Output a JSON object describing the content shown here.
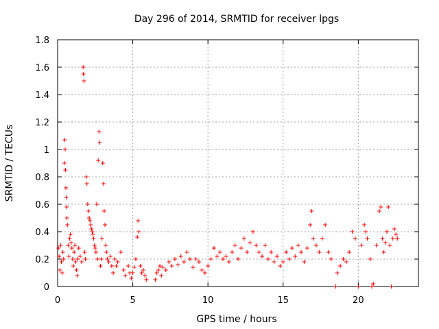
{
  "chart_data": {
    "type": "scatter",
    "title": "Day 296 of 2014, SRMTID for receiver lpgs",
    "xlabel": "GPS time / hours",
    "ylabel": "SRMTID / TECUs",
    "xlim": [
      0,
      24
    ],
    "ylim": [
      0,
      1.8
    ],
    "xticks": [
      0,
      5,
      10,
      15,
      20
    ],
    "yticks": [
      0,
      0.2,
      0.4,
      0.6,
      0.8,
      1,
      1.2,
      1.4,
      1.6,
      1.8
    ],
    "xtick_labels": [
      "0",
      "5",
      "10",
      "15",
      "20"
    ],
    "ytick_labels": [
      "0",
      "0.2",
      "0.4",
      "0.6",
      "0.8",
      "1",
      "1.2",
      "1.4",
      "1.6",
      "1.8"
    ],
    "grid": true,
    "marker": "+",
    "color": "#ff0000",
    "series": [
      {
        "name": "SRMTID",
        "points": [
          [
            0.05,
            0.28
          ],
          [
            0.1,
            0.22
          ],
          [
            0.15,
            0.12
          ],
          [
            0.2,
            0.3
          ],
          [
            0.25,
            0.18
          ],
          [
            0.3,
            0.1
          ],
          [
            0.35,
            0.25
          ],
          [
            0.4,
            0.2
          ],
          [
            0.45,
            0.9
          ],
          [
            0.47,
            1.07
          ],
          [
            0.5,
            1.0
          ],
          [
            0.52,
            0.85
          ],
          [
            0.55,
            0.72
          ],
          [
            0.57,
            0.65
          ],
          [
            0.6,
            0.58
          ],
          [
            0.62,
            0.5
          ],
          [
            0.65,
            0.45
          ],
          [
            0.7,
            0.3
          ],
          [
            0.75,
            0.22
          ],
          [
            0.8,
            0.35
          ],
          [
            0.85,
            0.38
          ],
          [
            0.9,
            0.32
          ],
          [
            0.95,
            0.28
          ],
          [
            1.0,
            0.2
          ],
          [
            1.05,
            0.15
          ],
          [
            1.1,
            0.25
          ],
          [
            1.15,
            0.3
          ],
          [
            1.2,
            0.18
          ],
          [
            1.25,
            0.12
          ],
          [
            1.3,
            0.08
          ],
          [
            1.35,
            0.2
          ],
          [
            1.4,
            0.28
          ],
          [
            1.5,
            0.22
          ],
          [
            1.6,
            0.18
          ],
          [
            1.7,
            1.6
          ],
          [
            1.72,
            1.55
          ],
          [
            1.75,
            1.5
          ],
          [
            1.8,
            0.25
          ],
          [
            1.85,
            0.2
          ],
          [
            1.9,
            0.8
          ],
          [
            1.95,
            0.75
          ],
          [
            2.0,
            0.6
          ],
          [
            2.05,
            0.55
          ],
          [
            2.1,
            0.5
          ],
          [
            2.15,
            0.48
          ],
          [
            2.2,
            0.45
          ],
          [
            2.25,
            0.42
          ],
          [
            2.3,
            0.4
          ],
          [
            2.35,
            0.38
          ],
          [
            2.4,
            0.35
          ],
          [
            2.45,
            0.3
          ],
          [
            2.5,
            0.28
          ],
          [
            2.55,
            0.25
          ],
          [
            2.6,
            0.6
          ],
          [
            2.65,
            0.2
          ],
          [
            2.7,
            0.92
          ],
          [
            2.75,
            1.13
          ],
          [
            2.8,
            1.05
          ],
          [
            2.85,
            0.15
          ],
          [
            2.9,
            0.2
          ],
          [
            2.95,
            0.35
          ],
          [
            3.0,
            0.9
          ],
          [
            3.05,
            0.75
          ],
          [
            3.1,
            0.55
          ],
          [
            3.15,
            0.45
          ],
          [
            3.2,
            0.3
          ],
          [
            3.25,
            0.25
          ],
          [
            3.3,
            0.2
          ],
          [
            3.4,
            0.18
          ],
          [
            3.5,
            0.22
          ],
          [
            3.6,
            0.15
          ],
          [
            3.7,
            0.1
          ],
          [
            3.8,
            0.2
          ],
          [
            3.9,
            0.15
          ],
          [
            4.0,
            0.18
          ],
          [
            4.2,
            0.25
          ],
          [
            4.4,
            0.12
          ],
          [
            4.5,
            0.08
          ],
          [
            4.7,
            0.15
          ],
          [
            4.8,
            0.1
          ],
          [
            4.9,
            0.06
          ],
          [
            5.0,
            0.1
          ],
          [
            5.1,
            0.14
          ],
          [
            5.2,
            0.2
          ],
          [
            5.3,
            0.36
          ],
          [
            5.35,
            0.48
          ],
          [
            5.4,
            0.4
          ],
          [
            5.5,
            0.15
          ],
          [
            5.6,
            0.1
          ],
          [
            5.7,
            0.12
          ],
          [
            5.8,
            0.08
          ],
          [
            5.9,
            0.05
          ],
          [
            6.5,
            0.05
          ],
          [
            6.6,
            0.1
          ],
          [
            6.7,
            0.12
          ],
          [
            6.8,
            0.15
          ],
          [
            6.9,
            0.08
          ],
          [
            7.0,
            0.14
          ],
          [
            7.2,
            0.12
          ],
          [
            7.4,
            0.18
          ],
          [
            7.6,
            0.15
          ],
          [
            7.8,
            0.2
          ],
          [
            8.0,
            0.16
          ],
          [
            8.2,
            0.22
          ],
          [
            8.4,
            0.18
          ],
          [
            8.6,
            0.25
          ],
          [
            8.8,
            0.2
          ],
          [
            9.0,
            0.14
          ],
          [
            9.2,
            0.2
          ],
          [
            9.4,
            0.18
          ],
          [
            9.6,
            0.12
          ],
          [
            9.8,
            0.1
          ],
          [
            10.0,
            0.15
          ],
          [
            10.2,
            0.2
          ],
          [
            10.4,
            0.28
          ],
          [
            10.6,
            0.22
          ],
          [
            10.8,
            0.25
          ],
          [
            11.0,
            0.2
          ],
          [
            11.2,
            0.22
          ],
          [
            11.4,
            0.18
          ],
          [
            11.6,
            0.25
          ],
          [
            11.8,
            0.3
          ],
          [
            12.0,
            0.2
          ],
          [
            12.2,
            0.28
          ],
          [
            12.4,
            0.35
          ],
          [
            12.6,
            0.25
          ],
          [
            12.8,
            0.32
          ],
          [
            13.0,
            0.4
          ],
          [
            13.2,
            0.3
          ],
          [
            13.4,
            0.25
          ],
          [
            13.6,
            0.22
          ],
          [
            13.8,
            0.3
          ],
          [
            14.0,
            0.2
          ],
          [
            14.2,
            0.25
          ],
          [
            14.4,
            0.18
          ],
          [
            14.6,
            0.22
          ],
          [
            14.8,
            0.15
          ],
          [
            15.0,
            0.18
          ],
          [
            15.2,
            0.25
          ],
          [
            15.4,
            0.2
          ],
          [
            15.6,
            0.28
          ],
          [
            15.8,
            0.22
          ],
          [
            16.0,
            0.3
          ],
          [
            16.2,
            0.25
          ],
          [
            16.4,
            0.18
          ],
          [
            16.6,
            0.28
          ],
          [
            16.8,
            0.45
          ],
          [
            16.9,
            0.55
          ],
          [
            17.0,
            0.35
          ],
          [
            17.2,
            0.3
          ],
          [
            17.4,
            0.25
          ],
          [
            17.6,
            0.35
          ],
          [
            17.8,
            0.45
          ],
          [
            18.0,
            0.25
          ],
          [
            18.2,
            0.2
          ],
          [
            18.5,
            0.0
          ],
          [
            18.6,
            0.1
          ],
          [
            18.8,
            0.15
          ],
          [
            19.0,
            0.2
          ],
          [
            19.2,
            0.18
          ],
          [
            19.4,
            0.25
          ],
          [
            19.6,
            0.4
          ],
          [
            19.8,
            0.35
          ],
          [
            20.0,
            0.0
          ],
          [
            20.2,
            0.3
          ],
          [
            20.4,
            0.45
          ],
          [
            20.5,
            0.4
          ],
          [
            20.6,
            0.35
          ],
          [
            20.8,
            0.2
          ],
          [
            20.9,
            0.0
          ],
          [
            21.0,
            0.02
          ],
          [
            21.2,
            0.3
          ],
          [
            21.4,
            0.55
          ],
          [
            21.5,
            0.58
          ],
          [
            21.6,
            0.35
          ],
          [
            21.7,
            0.25
          ],
          [
            21.8,
            0.32
          ],
          [
            21.9,
            0.4
          ],
          [
            22.0,
            0.58
          ],
          [
            22.1,
            0.3
          ],
          [
            22.2,
            0.0
          ],
          [
            22.3,
            0.35
          ],
          [
            22.4,
            0.42
          ],
          [
            22.5,
            0.38
          ],
          [
            22.6,
            0.35
          ]
        ]
      }
    ]
  }
}
